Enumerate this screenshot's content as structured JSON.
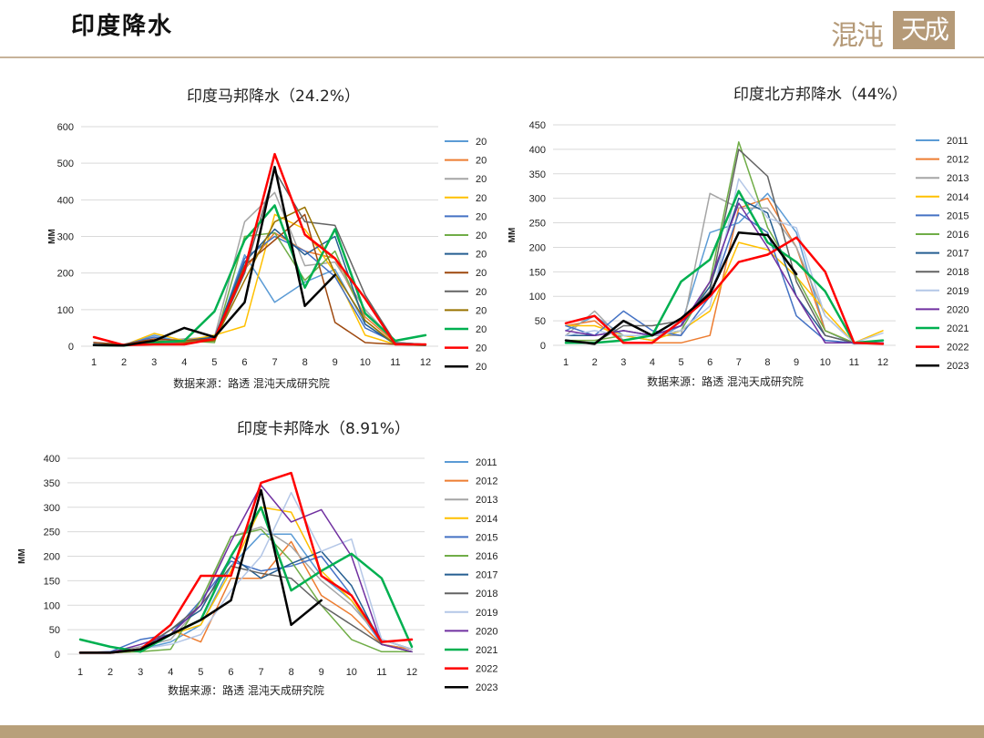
{
  "header": {
    "title": "印度降水",
    "logo_text_left": "混沌",
    "logo_text_right": "天成"
  },
  "colors": {
    "header_line": "#c7b39a",
    "footer_bar": "#b8a07a",
    "logo": "#b59a78"
  },
  "chart_data": [
    {
      "type": "line",
      "title": "印度马邦降水（24.2%）",
      "ylabel": "MM",
      "source": "数据来源：路透  混沌天成研究院",
      "ylim": [
        0,
        600
      ],
      "yticks": [
        0,
        100,
        200,
        300,
        400,
        500,
        600
      ],
      "categories": [
        "1",
        "2",
        "3",
        "4",
        "5",
        "6",
        "7",
        "8",
        "9",
        "10",
        "11",
        "12"
      ],
      "legend_position": "right",
      "series": [
        {
          "name": "20",
          "color": "#5b9bd5",
          "width": 1.5,
          "values": [
            5,
            3,
            30,
            10,
            15,
            250,
            120,
            175,
            210,
            60,
            5,
            3
          ]
        },
        {
          "name": "20",
          "color": "#ed7d31",
          "width": 1.5,
          "values": [
            3,
            2,
            10,
            20,
            20,
            210,
            310,
            260,
            240,
            80,
            10,
            3
          ]
        },
        {
          "name": "20",
          "color": "#a5a5a5",
          "width": 1.5,
          "values": [
            2,
            5,
            15,
            20,
            25,
            340,
            420,
            220,
            230,
            100,
            10,
            5
          ]
        },
        {
          "name": "20",
          "color": "#ffc000",
          "width": 1.5,
          "values": [
            2,
            3,
            35,
            15,
            30,
            55,
            360,
            320,
            200,
            30,
            5,
            2
          ]
        },
        {
          "name": "20",
          "color": "#4472c4",
          "width": 1.5,
          "values": [
            10,
            5,
            25,
            10,
            20,
            240,
            300,
            260,
            190,
            50,
            10,
            5
          ]
        },
        {
          "name": "20",
          "color": "#70ad47",
          "width": 1.5,
          "values": [
            3,
            2,
            10,
            15,
            10,
            300,
            310,
            180,
            260,
            70,
            5,
            3
          ]
        },
        {
          "name": "20",
          "color": "#255e91",
          "width": 1.5,
          "values": [
            5,
            3,
            10,
            15,
            25,
            230,
            320,
            250,
            300,
            60,
            5,
            2
          ]
        },
        {
          "name": "20",
          "color": "#9e480e",
          "width": 1.5,
          "values": [
            10,
            5,
            20,
            15,
            20,
            220,
            290,
            360,
            65,
            10,
            5,
            3
          ]
        },
        {
          "name": "20",
          "color": "#636363",
          "width": 1.5,
          "values": [
            2,
            3,
            10,
            10,
            15,
            200,
            480,
            340,
            330,
            140,
            10,
            5
          ]
        },
        {
          "name": "20",
          "color": "#997300",
          "width": 1.5,
          "values": [
            3,
            2,
            15,
            10,
            15,
            180,
            340,
            380,
            200,
            70,
            5,
            3
          ]
        },
        {
          "name": "20",
          "color": "#00b050",
          "width": 2.5,
          "values": [
            3,
            2,
            10,
            15,
            95,
            290,
            385,
            160,
            320,
            90,
            15,
            30
          ]
        },
        {
          "name": "20",
          "color": "#ff0000",
          "width": 2.5,
          "values": [
            25,
            3,
            5,
            5,
            20,
            210,
            525,
            305,
            240,
            130,
            5,
            5
          ]
        },
        {
          "name": "20",
          "color": "#000000",
          "width": 2.5,
          "values": [
            3,
            2,
            15,
            50,
            25,
            120,
            490,
            110,
            195,
            null,
            null,
            null
          ]
        }
      ]
    },
    {
      "type": "line",
      "title": "印度北方邦降水（44%）",
      "ylabel": "MM",
      "source": "数据来源：路透  混沌天成研究院",
      "ylim": [
        0,
        450
      ],
      "yticks": [
        0,
        50,
        100,
        150,
        200,
        250,
        300,
        350,
        400,
        450
      ],
      "categories": [
        "1",
        "2",
        "3",
        "4",
        "5",
        "6",
        "7",
        "8",
        "9",
        "10",
        "11",
        "12"
      ],
      "legend_position": "right",
      "series": [
        {
          "name": "2011",
          "color": "#5b9bd5",
          "width": 1.5,
          "values": [
            30,
            60,
            20,
            10,
            40,
            230,
            250,
            310,
            230,
            30,
            3,
            5
          ]
        },
        {
          "name": "2012",
          "color": "#ed7d31",
          "width": 1.5,
          "values": [
            40,
            50,
            5,
            5,
            5,
            20,
            280,
            300,
            200,
            30,
            5,
            5
          ]
        },
        {
          "name": "2013",
          "color": "#a5a5a5",
          "width": 1.5,
          "values": [
            20,
            70,
            10,
            20,
            20,
            310,
            280,
            280,
            200,
            60,
            5,
            10
          ]
        },
        {
          "name": "2014",
          "color": "#ffc000",
          "width": 1.5,
          "values": [
            40,
            40,
            20,
            10,
            30,
            70,
            210,
            195,
            140,
            70,
            5,
            30
          ]
        },
        {
          "name": "2015",
          "color": "#4472c4",
          "width": 1.5,
          "values": [
            40,
            20,
            70,
            30,
            20,
            100,
            270,
            230,
            60,
            10,
            5,
            5
          ]
        },
        {
          "name": "2016",
          "color": "#70ad47",
          "width": 1.5,
          "values": [
            10,
            10,
            20,
            20,
            30,
            130,
            415,
            240,
            140,
            30,
            5,
            5
          ]
        },
        {
          "name": "2017",
          "color": "#255e91",
          "width": 1.5,
          "values": [
            20,
            20,
            30,
            20,
            40,
            120,
            300,
            270,
            100,
            20,
            5,
            5
          ]
        },
        {
          "name": "2018",
          "color": "#636363",
          "width": 1.5,
          "values": [
            10,
            5,
            40,
            40,
            50,
            110,
            400,
            345,
            130,
            20,
            5,
            5
          ]
        },
        {
          "name": "2019",
          "color": "#b4c7e7",
          "width": 1.5,
          "values": [
            20,
            30,
            20,
            20,
            30,
            80,
            340,
            260,
            240,
            60,
            5,
            25
          ]
        },
        {
          "name": "2020",
          "color": "#7030a0",
          "width": 1.5,
          "values": [
            30,
            20,
            30,
            20,
            40,
            130,
            290,
            200,
            100,
            5,
            5,
            5
          ]
        },
        {
          "name": "2021",
          "color": "#00b050",
          "width": 2.5,
          "values": [
            5,
            5,
            10,
            20,
            130,
            175,
            315,
            210,
            170,
            110,
            5,
            10
          ]
        },
        {
          "name": "2022",
          "color": "#ff0000",
          "width": 2.5,
          "values": [
            45,
            60,
            5,
            5,
            50,
            100,
            170,
            185,
            220,
            150,
            5,
            3
          ]
        },
        {
          "name": "2023",
          "color": "#000000",
          "width": 2.5,
          "values": [
            10,
            3,
            50,
            20,
            55,
            105,
            230,
            225,
            145,
            null,
            null,
            null
          ]
        }
      ]
    },
    {
      "type": "line",
      "title": "印度卡邦降水（8.91%）",
      "ylabel": "MM",
      "source": "数据来源：路透  混沌天成研究院",
      "ylim": [
        0,
        400
      ],
      "yticks": [
        0,
        50,
        100,
        150,
        200,
        250,
        300,
        350,
        400
      ],
      "categories": [
        "1",
        "2",
        "3",
        "4",
        "5",
        "6",
        "7",
        "8",
        "9",
        "10",
        "11",
        "12"
      ],
      "legend_position": "right",
      "series": [
        {
          "name": "2011",
          "color": "#5b9bd5",
          "width": 1.5,
          "values": [
            3,
            3,
            10,
            25,
            60,
            180,
            245,
            245,
            160,
            110,
            20,
            10
          ]
        },
        {
          "name": "2012",
          "color": "#ed7d31",
          "width": 1.5,
          "values": [
            3,
            3,
            10,
            50,
            25,
            155,
            155,
            230,
            120,
            80,
            20,
            10
          ]
        },
        {
          "name": "2013",
          "color": "#a5a5a5",
          "width": 1.5,
          "values": [
            3,
            5,
            15,
            30,
            100,
            240,
            260,
            220,
            150,
            100,
            30,
            10
          ]
        },
        {
          "name": "2014",
          "color": "#ffc000",
          "width": 1.5,
          "values": [
            3,
            3,
            10,
            40,
            60,
            170,
            300,
            290,
            170,
            110,
            30,
            10
          ]
        },
        {
          "name": "2015",
          "color": "#4472c4",
          "width": 1.5,
          "values": [
            3,
            5,
            30,
            40,
            110,
            190,
            170,
            180,
            200,
            120,
            30,
            10
          ]
        },
        {
          "name": "2016",
          "color": "#70ad47",
          "width": 1.5,
          "values": [
            3,
            3,
            5,
            10,
            110,
            240,
            255,
            190,
            100,
            30,
            5,
            5
          ]
        },
        {
          "name": "2017",
          "color": "#255e91",
          "width": 1.5,
          "values": [
            3,
            3,
            10,
            50,
            90,
            200,
            155,
            185,
            210,
            140,
            20,
            5
          ]
        },
        {
          "name": "2018",
          "color": "#636363",
          "width": 1.5,
          "values": [
            3,
            3,
            10,
            50,
            100,
            180,
            165,
            155,
            100,
            60,
            20,
            5
          ]
        },
        {
          "name": "2019",
          "color": "#b4c7e7",
          "width": 1.5,
          "values": [
            3,
            3,
            10,
            20,
            40,
            130,
            200,
            330,
            210,
            235,
            30,
            10
          ]
        },
        {
          "name": "2020",
          "color": "#7030a0",
          "width": 1.5,
          "values": [
            3,
            3,
            20,
            40,
            100,
            230,
            345,
            270,
            295,
            200,
            20,
            5
          ]
        },
        {
          "name": "2021",
          "color": "#00b050",
          "width": 2.5,
          "values": [
            30,
            15,
            5,
            40,
            70,
            200,
            300,
            130,
            170,
            205,
            155,
            15
          ]
        },
        {
          "name": "2022",
          "color": "#ff0000",
          "width": 2.5,
          "values": [
            3,
            3,
            10,
            60,
            160,
            160,
            350,
            370,
            160,
            120,
            25,
            30
          ]
        },
        {
          "name": "2023",
          "color": "#000000",
          "width": 2.5,
          "values": [
            3,
            3,
            10,
            40,
            70,
            110,
            335,
            60,
            110,
            null,
            null,
            null
          ]
        }
      ]
    }
  ]
}
